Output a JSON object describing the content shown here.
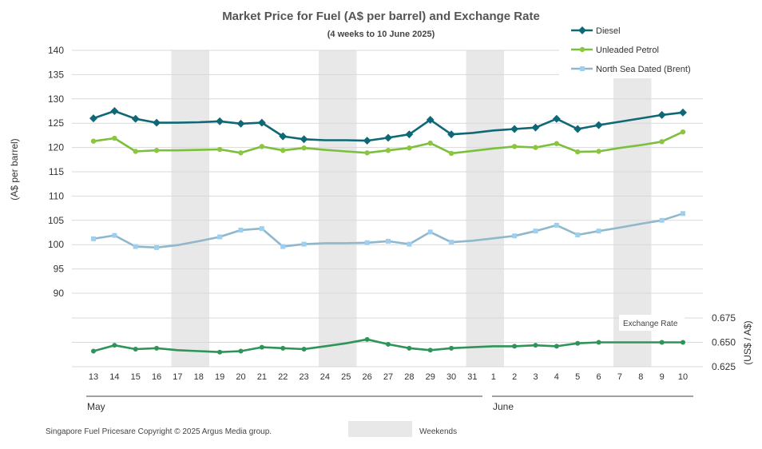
{
  "chart_data": {
    "type": "line",
    "title": "Market Price for Fuel (A$  per barrel) and Exchange Rate",
    "subtitle": "(4 weeks to 10 June 2025)",
    "ylabel": "(A$  per barrel)",
    "ylabel_right": "(US$ / A$)",
    "ylim": [
      90,
      140
    ],
    "yticks": [
      "140",
      "135",
      "130",
      "125",
      "120",
      "115",
      "110",
      "105",
      "100",
      "95",
      "90"
    ],
    "right_ylim": [
      0.625,
      0.675
    ],
    "right_yticks": [
      "0.675",
      "0.650",
      "0.625"
    ],
    "categories": [
      "13",
      "14",
      "15",
      "16",
      "17",
      "18",
      "19",
      "20",
      "21",
      "22",
      "23",
      "24",
      "25",
      "26",
      "27",
      "28",
      "29",
      "30",
      "31",
      "1",
      "2",
      "3",
      "4",
      "5",
      "6",
      "7",
      "8",
      "9",
      "10"
    ],
    "months": [
      "May",
      "June"
    ],
    "weekend_ranges": [
      [
        "17",
        "18"
      ],
      [
        "24",
        "25"
      ],
      [
        "31",
        "1"
      ],
      [
        "7",
        "8"
      ]
    ],
    "series": [
      {
        "name": "Diesel",
        "color": "#0e6876",
        "marker": "diamond",
        "values": [
          126.0,
          127.5,
          125.9,
          125.1,
          125.1,
          125.2,
          125.4,
          124.9,
          125.1,
          122.3,
          121.7,
          121.5,
          121.5,
          121.4,
          122.0,
          122.7,
          125.7,
          122.7,
          123.0,
          123.5,
          123.8,
          124.1,
          125.9,
          123.8,
          124.6,
          125.3,
          126.0,
          126.7,
          127.2
        ],
        "markers": [
          true,
          true,
          true,
          true,
          false,
          false,
          true,
          true,
          true,
          true,
          true,
          false,
          false,
          true,
          true,
          true,
          true,
          true,
          false,
          false,
          true,
          true,
          true,
          true,
          true,
          false,
          false,
          true,
          true
        ]
      },
      {
        "name": "Unleaded Petrol",
        "color": "#7cbf3c",
        "marker": "circle",
        "values": [
          121.3,
          121.9,
          119.2,
          119.4,
          119.4,
          119.5,
          119.6,
          118.9,
          120.2,
          119.4,
          119.9,
          119.5,
          119.2,
          118.9,
          119.4,
          119.9,
          120.9,
          118.8,
          119.3,
          119.8,
          120.2,
          120.0,
          120.8,
          119.1,
          119.2,
          119.9,
          120.5,
          121.2,
          123.2
        ],
        "markers": [
          true,
          true,
          true,
          true,
          false,
          false,
          true,
          true,
          true,
          true,
          true,
          false,
          false,
          true,
          true,
          true,
          true,
          true,
          false,
          false,
          true,
          true,
          true,
          true,
          true,
          false,
          false,
          true,
          true
        ]
      },
      {
        "name": "North Sea Dated (Brent)",
        "color": "#8fb8cc",
        "marker_color": "#9dd0f0",
        "marker": "square",
        "values": [
          101.2,
          101.9,
          99.6,
          99.4,
          99.9,
          100.7,
          101.6,
          103.0,
          103.3,
          99.6,
          100.1,
          100.3,
          100.3,
          100.4,
          100.7,
          100.1,
          102.6,
          100.5,
          100.8,
          101.3,
          101.8,
          102.8,
          104.0,
          102.0,
          102.8,
          103.5,
          104.3,
          105.0,
          106.4
        ],
        "markers": [
          true,
          true,
          true,
          true,
          false,
          false,
          true,
          true,
          true,
          true,
          true,
          false,
          false,
          true,
          true,
          true,
          true,
          true,
          false,
          false,
          true,
          true,
          true,
          true,
          true,
          false,
          false,
          true,
          true
        ]
      }
    ],
    "exchange_rate": {
      "name": "Exchange Rate",
      "color": "#2e9458",
      "values": [
        0.641,
        0.647,
        0.643,
        0.644,
        0.642,
        0.641,
        0.64,
        0.641,
        0.645,
        0.644,
        0.643,
        0.646,
        0.649,
        0.653,
        0.648,
        0.644,
        0.642,
        0.644,
        0.645,
        0.646,
        0.646,
        0.647,
        0.646,
        0.649,
        0.65,
        0.65,
        0.65,
        0.65,
        0.65
      ],
      "markers": [
        true,
        true,
        true,
        true,
        false,
        false,
        true,
        true,
        true,
        true,
        true,
        false,
        false,
        true,
        true,
        true,
        true,
        true,
        false,
        false,
        true,
        true,
        true,
        true,
        true,
        false,
        false,
        true,
        true
      ]
    },
    "legend_position": "top-right",
    "grid": true
  },
  "legend": {
    "weekends_label": "Weekends"
  },
  "footer": {
    "copyright": "Singapore Fuel Pricesare Copyright © 2025 Argus Media group."
  }
}
